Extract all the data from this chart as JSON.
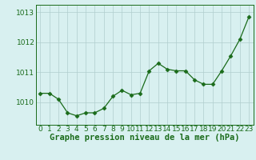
{
  "x": [
    0,
    1,
    2,
    3,
    4,
    5,
    6,
    7,
    8,
    9,
    10,
    11,
    12,
    13,
    14,
    15,
    16,
    17,
    18,
    19,
    20,
    21,
    22,
    23
  ],
  "y": [
    1010.3,
    1010.3,
    1010.1,
    1009.65,
    1009.55,
    1009.65,
    1009.65,
    1009.8,
    1010.2,
    1010.4,
    1010.25,
    1010.3,
    1011.05,
    1011.3,
    1011.1,
    1011.05,
    1011.05,
    1010.75,
    1010.6,
    1010.6,
    1011.05,
    1011.55,
    1012.1,
    1012.85
  ],
  "line_color": "#1a6b1a",
  "marker": "D",
  "marker_size": 2.5,
  "bg_color": "#d8f0f0",
  "grid_color": "#b0cece",
  "axis_color": "#1a6b1a",
  "ylim": [
    1009.25,
    1013.25
  ],
  "yticks": [
    1010,
    1011,
    1012,
    1013
  ],
  "xlim": [
    -0.5,
    23.5
  ],
  "xtick_labels": [
    "0",
    "1",
    "2",
    "3",
    "4",
    "5",
    "6",
    "7",
    "8",
    "9",
    "10",
    "11",
    "12",
    "13",
    "14",
    "15",
    "16",
    "17",
    "18",
    "19",
    "20",
    "21",
    "22",
    "23"
  ],
  "xlabel": "Graphe pression niveau de la mer (hPa)",
  "xlabel_fontsize": 7.5,
  "tick_fontsize": 6.5
}
